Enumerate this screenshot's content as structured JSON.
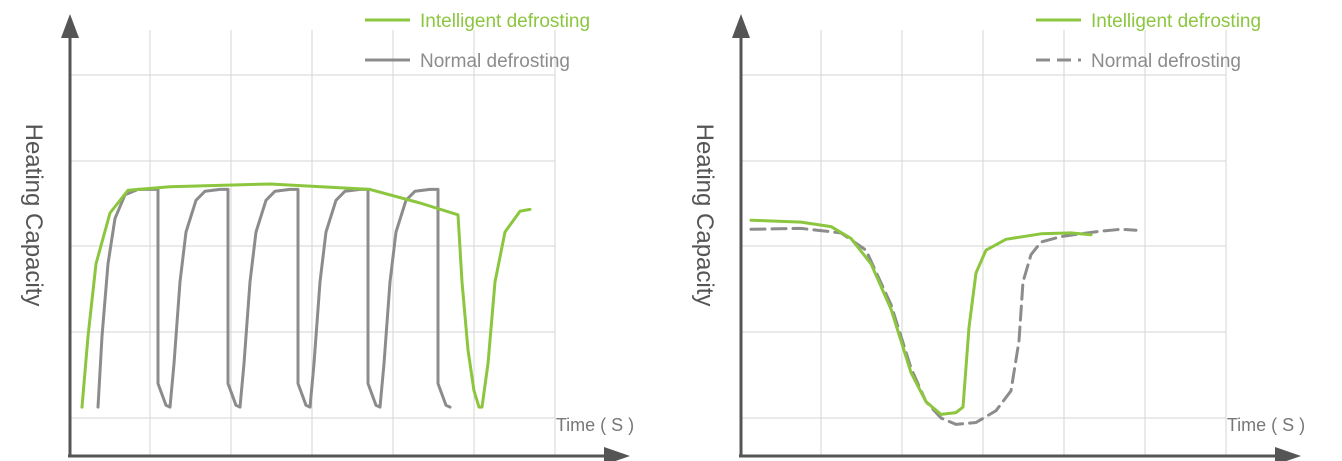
{
  "colors": {
    "intelligent": "#8cc63f",
    "normal": "#8c8c8c",
    "grid": "#d4d4d4",
    "axis": "#555555"
  },
  "chart_data": [
    {
      "type": "line",
      "title": "",
      "xlabel": "Time ( S )",
      "ylabel": "Heating Capacity",
      "grid": true,
      "legend": "top-right",
      "xlim": [
        0,
        600
      ],
      "ylim": [
        0,
        420
      ],
      "series": [
        {
          "name": "Intelligent defrosting",
          "style": "solid",
          "points": [
            [
              12,
              12
            ],
            [
              18,
              90
            ],
            [
              26,
              170
            ],
            [
              40,
              226
            ],
            [
              58,
              251
            ],
            [
              100,
              255
            ],
            [
              200,
              258
            ],
            [
              300,
              252
            ],
            [
              350,
              237
            ],
            [
              388,
              224
            ],
            [
              392,
              150
            ],
            [
              398,
              75
            ],
            [
              404,
              30
            ],
            [
              409,
              12
            ],
            [
              412,
              12
            ],
            [
              418,
              60
            ],
            [
              425,
              150
            ],
            [
              435,
              205
            ],
            [
              450,
              228
            ],
            [
              460,
              230
            ]
          ]
        },
        {
          "name": "Normal defrosting",
          "style": "solid",
          "points": [
            [
              28,
              12
            ],
            [
              32,
              90
            ],
            [
              38,
              170
            ],
            [
              45,
              220
            ],
            [
              55,
              246
            ],
            [
              68,
              252
            ],
            [
              88,
              252
            ],
            [
              88,
              38
            ],
            [
              96,
              14
            ],
            [
              100,
              12
            ],
            [
              104,
              60
            ],
            [
              110,
              150
            ],
            [
              116,
              205
            ],
            [
              126,
              240
            ],
            [
              135,
              250
            ],
            [
              150,
              252
            ],
            [
              158,
              252
            ],
            [
              158,
              38
            ],
            [
              166,
              14
            ],
            [
              170,
              12
            ],
            [
              174,
              60
            ],
            [
              180,
              150
            ],
            [
              186,
              205
            ],
            [
              196,
              240
            ],
            [
              205,
              250
            ],
            [
              220,
              252
            ],
            [
              228,
              252
            ],
            [
              228,
              38
            ],
            [
              236,
              14
            ],
            [
              240,
              12
            ],
            [
              244,
              60
            ],
            [
              250,
              150
            ],
            [
              256,
              205
            ],
            [
              266,
              240
            ],
            [
              275,
              250
            ],
            [
              290,
              252
            ],
            [
              298,
              252
            ],
            [
              298,
              38
            ],
            [
              306,
              14
            ],
            [
              310,
              12
            ],
            [
              314,
              60
            ],
            [
              320,
              150
            ],
            [
              326,
              205
            ],
            [
              336,
              240
            ],
            [
              345,
              250
            ],
            [
              360,
              252
            ],
            [
              368,
              252
            ],
            [
              368,
              38
            ],
            [
              376,
              14
            ],
            [
              380,
              12
            ]
          ]
        }
      ]
    },
    {
      "type": "line",
      "title": "",
      "xlabel": "Time ( S )",
      "ylabel": "Heating Capacity",
      "grid": true,
      "legend": "top-right",
      "xlim": [
        0,
        600
      ],
      "ylim": [
        0,
        420
      ],
      "series": [
        {
          "name": "Intelligent defrosting",
          "style": "solid",
          "points": [
            [
              10,
              218
            ],
            [
              60,
              216
            ],
            [
              90,
              211
            ],
            [
              110,
              198
            ],
            [
              130,
              170
            ],
            [
              150,
              120
            ],
            [
              170,
              50
            ],
            [
              185,
              18
            ],
            [
              200,
              4
            ],
            [
              215,
              6
            ],
            [
              222,
              12
            ],
            [
              228,
              100
            ],
            [
              235,
              160
            ],
            [
              245,
              185
            ],
            [
              265,
              197
            ],
            [
              300,
              203
            ],
            [
              330,
              204
            ],
            [
              350,
              202
            ]
          ]
        },
        {
          "name": "Normal defrosting",
          "style": "dashed",
          "points": [
            [
              10,
              208
            ],
            [
              60,
              209
            ],
            [
              100,
              204
            ],
            [
              125,
              185
            ],
            [
              150,
              125
            ],
            [
              170,
              55
            ],
            [
              185,
              18
            ],
            [
              200,
              0
            ],
            [
              215,
              -7
            ],
            [
              235,
              -5
            ],
            [
              255,
              8
            ],
            [
              270,
              30
            ],
            [
              278,
              85
            ],
            [
              282,
              150
            ],
            [
              290,
              180
            ],
            [
              300,
              194
            ],
            [
              320,
              200
            ],
            [
              340,
              203
            ],
            [
              360,
              206
            ],
            [
              380,
              208
            ],
            [
              395,
              207
            ]
          ]
        }
      ]
    }
  ]
}
